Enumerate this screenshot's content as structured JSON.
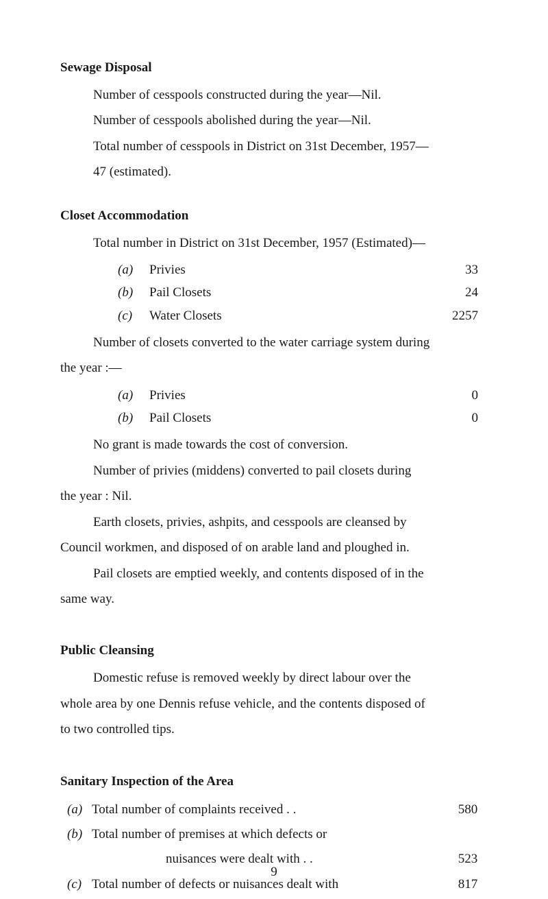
{
  "sewage": {
    "heading": "Sewage Disposal",
    "line1": "Number of cesspools constructed during the year—Nil.",
    "line2": "Number of cesspools abolished during the year—Nil.",
    "line3a": "Total number of cesspools in District on 31st December, 1957—",
    "line3b": "47 (estimated)."
  },
  "closet": {
    "heading": "Closet Accommodation",
    "intro": "Total number in District on 31st December, 1957 (Estimated)—",
    "items1": [
      {
        "marker": "(a)",
        "label": "Privies",
        "dots": ". .      . .      . .      . .      . .",
        "value": "33"
      },
      {
        "marker": "(b)",
        "label": "Pail Closets",
        "dots": ". .      . .      . .      . .",
        "value": "24"
      },
      {
        "marker": "(c)",
        "label": "Water Closets",
        "dots": ". .      . .      . .      . .",
        "value": "2257"
      }
    ],
    "converted_intro1": "Number of closets converted to the water carriage system during",
    "converted_intro2": "the year :—",
    "items2": [
      {
        "marker": "(a)",
        "label": "Privies",
        "dots": ". .      . .      . .      . .      . .",
        "value": "0"
      },
      {
        "marker": "(b)",
        "label": "Pail Closets",
        "dots": ". .      . .      . .      . .",
        "value": "0"
      }
    ],
    "grant": "No grant is made towards the cost of conversion.",
    "middens1": "Number of privies (middens) converted to pail closets during",
    "middens2": "the year : Nil.",
    "earth1": "Earth closets, privies, ashpits, and cesspools are cleansed by",
    "earth2": "Council workmen, and disposed of on arable land and ploughed in.",
    "pail1": "Pail closets are emptied weekly, and contents disposed of in the",
    "pail2": "same way."
  },
  "public": {
    "heading": "Public Cleansing",
    "para1": "Domestic refuse is removed weekly by direct labour over the",
    "para2": "whole area by one Dennis refuse vehicle, and the contents disposed of",
    "para3": "to two controlled tips."
  },
  "sanitary": {
    "heading": "Sanitary Inspection of the Area",
    "rows": [
      {
        "marker": "(a)",
        "label": "Total number of complaints received      . .",
        "value": "580"
      },
      {
        "marker": "(b)",
        "label": "Total number of premises at which defects or",
        "value": ""
      },
      {
        "marker": "",
        "label": "nuisances were dealt with             . .",
        "value": "523",
        "sub": true
      },
      {
        "marker": "(c)",
        "label": "Total number of defects or nuisances dealt with",
        "value": "817"
      }
    ]
  },
  "pagenum": "9"
}
